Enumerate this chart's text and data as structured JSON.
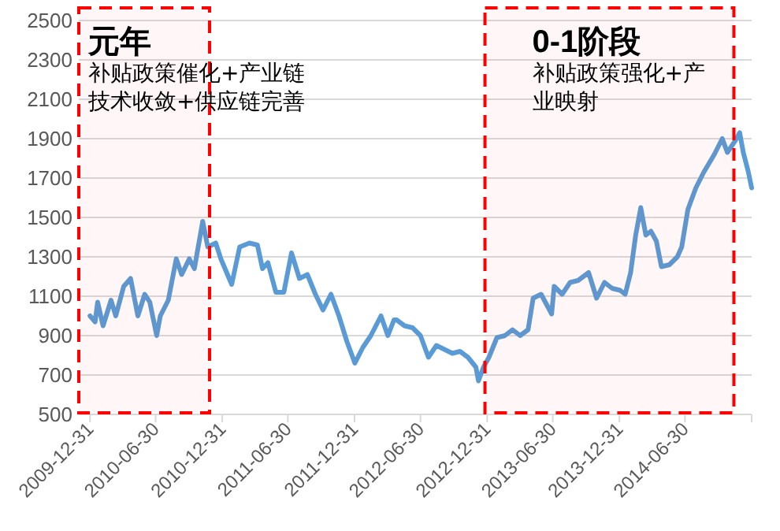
{
  "chart_data": {
    "type": "line",
    "x": [
      "2009-12-31",
      "2010-01-14",
      "2010-01-21",
      "2010-02-05",
      "2010-02-27",
      "2010-03-12",
      "2010-04-03",
      "2010-04-22",
      "2010-05-12",
      "2010-05-31",
      "2010-06-14",
      "2010-07-03",
      "2010-07-13",
      "2010-08-04",
      "2010-08-26",
      "2010-09-10",
      "2010-10-01",
      "2010-10-15",
      "2010-11-07",
      "2010-11-21",
      "2010-12-13",
      "2010-12-27",
      "2011-01-26",
      "2011-02-17",
      "2011-03-16",
      "2011-04-07",
      "2011-04-21",
      "2011-05-06",
      "2011-05-28",
      "2011-06-19",
      "2011-07-10",
      "2011-08-01",
      "2011-08-23",
      "2011-09-14",
      "2011-10-05",
      "2011-10-27",
      "2011-11-18",
      "2011-12-10",
      "2012-01-01",
      "2012-01-23",
      "2012-02-14",
      "2012-03-13",
      "2012-04-01",
      "2012-04-18",
      "2012-04-25",
      "2012-05-17",
      "2012-06-08",
      "2012-06-30",
      "2012-07-22",
      "2012-08-13",
      "2012-09-04",
      "2012-09-26",
      "2012-10-17",
      "2012-11-08",
      "2012-11-30",
      "2012-12-07",
      "2012-12-21",
      "2013-01-05",
      "2013-01-27",
      "2013-02-18",
      "2013-03-11",
      "2013-04-01",
      "2013-04-23",
      "2013-05-07",
      "2013-05-29",
      "2013-06-27",
      "2013-07-04",
      "2013-07-26",
      "2013-08-17",
      "2013-09-08",
      "2013-10-07",
      "2013-10-29",
      "2013-11-20",
      "2013-12-11",
      "2014-01-02",
      "2014-01-16",
      "2014-01-31",
      "2014-02-14",
      "2014-02-28",
      "2014-03-14",
      "2014-03-28",
      "2014-04-12",
      "2014-04-26",
      "2014-05-18",
      "2014-06-09",
      "2014-06-21",
      "2014-07-08",
      "2014-07-30",
      "2014-08-21",
      "2014-09-19",
      "2014-10-11",
      "2014-10-25",
      "2014-11-16",
      "2014-11-28",
      "2014-12-08",
      "2014-12-22",
      "2014-12-31"
    ],
    "series": [
      {
        "color": "#5b9bd5",
        "values": [
          1000,
          970,
          1070,
          950,
          1080,
          1000,
          1150,
          1190,
          1000,
          1110,
          1070,
          900,
          1000,
          1080,
          1290,
          1210,
          1290,
          1240,
          1480,
          1350,
          1370,
          1290,
          1160,
          1350,
          1370,
          1360,
          1240,
          1270,
          1120,
          1120,
          1320,
          1190,
          1210,
          1110,
          1030,
          1110,
          1000,
          870,
          760,
          840,
          900,
          1000,
          900,
          980,
          980,
          950,
          940,
          900,
          790,
          850,
          830,
          810,
          820,
          790,
          740,
          670,
          740,
          790,
          890,
          900,
          930,
          900,
          930,
          1090,
          1110,
          1010,
          1150,
          1110,
          1170,
          1180,
          1220,
          1090,
          1170,
          1140,
          1130,
          1110,
          1220,
          1410,
          1550,
          1410,
          1430,
          1380,
          1250,
          1260,
          1300,
          1350,
          1540,
          1650,
          1730,
          1820,
          1900,
          1830,
          1890,
          1930,
          1830,
          1730,
          1650
        ]
      }
    ],
    "xlim": [
      "2009-11-30",
      "2014-12-31"
    ],
    "xticks": [
      {
        "value": "2009-12-31",
        "label": "2009-12-31"
      },
      {
        "value": "2010-06-30",
        "label": "2010-06-30"
      },
      {
        "value": "2010-12-31",
        "label": "2010-12-31"
      },
      {
        "value": "2011-06-30",
        "label": "2011-06-30"
      },
      {
        "value": "2011-12-31",
        "label": "2011-12-31"
      },
      {
        "value": "2012-06-30",
        "label": "2012-06-30"
      },
      {
        "value": "2012-12-31",
        "label": "2012-12-31"
      },
      {
        "value": "2013-06-30",
        "label": "2013-06-30"
      },
      {
        "value": "2013-12-31",
        "label": "2013-12-31"
      },
      {
        "value": "2014-06-30",
        "label": "2014-06-30"
      },
      {
        "value": "2014-12-31",
        "label": null
      }
    ],
    "ylim": [
      500,
      2500
    ],
    "yticks": [
      500,
      700,
      900,
      1100,
      1300,
      1500,
      1700,
      1900,
      2100,
      2300,
      2500
    ],
    "grid": "y",
    "line_style": "solid",
    "marker": "none",
    "bands": [
      {
        "axis": "x",
        "from": "2009-11-30",
        "to": "2010-11-26",
        "label": "元年",
        "color": "#ff0000"
      },
      {
        "axis": "x",
        "from": "2012-12-25",
        "to": "2014-11-12",
        "label": "0-1阶段",
        "color": "#ff0000"
      }
    ],
    "annotations": [
      "补贴政策催化+产业链技术收敛+供应链完善",
      "补贴政策强化+产业映射"
    ]
  }
}
